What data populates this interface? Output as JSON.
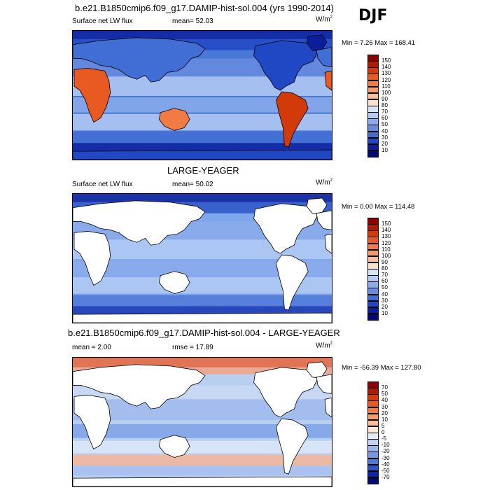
{
  "season": "DJF",
  "panels": [
    {
      "title": "b.e21.B1850cmip6.f09_g17.DAMIP-hist-sol.004 (yrs 1990-2014)",
      "left_label": "Surface net LW flux",
      "center_label": "mean=  52.03",
      "unit_base": "W/m",
      "unit_exp": "2",
      "minmax": "Min =   7.26 Max = 168.41",
      "ocean_color": "#4a78d6",
      "land_mode": "filled",
      "colorbar_labels": [
        "150",
        "140",
        "130",
        "120",
        "110",
        "100",
        "90",
        "80",
        "70",
        "60",
        "50",
        "40",
        "30",
        "20",
        "10"
      ]
    },
    {
      "title": "LARGE-YEAGER",
      "left_label": "Surface net LW flux",
      "center_label": "mean=  50.02",
      "unit_base": "W/m",
      "unit_exp": "2",
      "minmax": "Min =   0.00 Max = 114.48",
      "ocean_color": "#7ea6ec",
      "land_mode": "white",
      "colorbar_labels": [
        "150",
        "140",
        "130",
        "120",
        "110",
        "100",
        "90",
        "80",
        "70",
        "60",
        "50",
        "40",
        "30",
        "20",
        "10"
      ]
    },
    {
      "title": "b.e21.B1850cmip6.f09_g17.DAMIP-hist-sol.004 - LARGE-YEAGER",
      "left_label": "mean =   2.00",
      "center_label": "rmse =  17.89",
      "unit_base": "W/m",
      "unit_exp": "2",
      "minmax": "Min = -56.39 Max = 127.80",
      "ocean_color": "#b8cff2",
      "land_mode": "white",
      "colorbar_labels": [
        "70",
        "50",
        "40",
        "30",
        "20",
        "10",
        "5",
        "0",
        "-5",
        "-10",
        "-20",
        "-30",
        "-40",
        "-50",
        "-70"
      ]
    }
  ],
  "colors": {
    "flux_scale": [
      "#8b0000",
      "#b01a00",
      "#d23a0a",
      "#e85a22",
      "#f27a44",
      "#f79a6c",
      "#fbbe9c",
      "#fde0cc",
      "#d6e4fa",
      "#b4cbf4",
      "#8cabeb",
      "#668cdf",
      "#416ed5",
      "#2148c4",
      "#0a1e9c",
      "#000a70"
    ],
    "diff_scale": [
      "#8b0000",
      "#b01a00",
      "#d23a0a",
      "#e85a22",
      "#f27a44",
      "#f79a6c",
      "#fbbe9c",
      "#fde8da",
      "#e4ecfa",
      "#c2d3f5",
      "#9bb6ee",
      "#7597e4",
      "#4f78d9",
      "#2c55c9",
      "#0c26a4",
      "#000a70"
    ]
  }
}
